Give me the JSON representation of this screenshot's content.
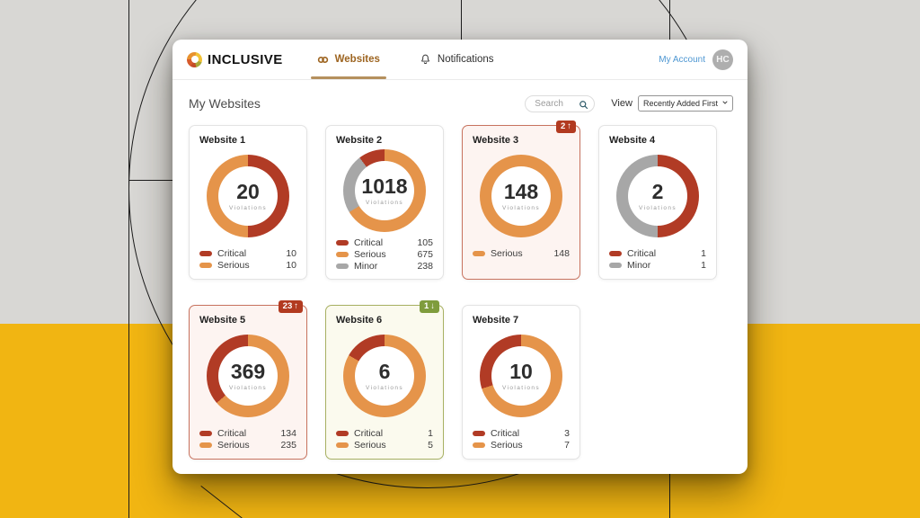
{
  "canvas": {
    "gray": "#d8d7d4",
    "yellow": "#f1b512",
    "line_color": "#1c1c1c"
  },
  "header": {
    "logo_text": "INCLUSIVE",
    "tabs": [
      {
        "label": "Websites",
        "icon": "link-icon",
        "active": true
      },
      {
        "label": "Notifications",
        "icon": "bell-icon",
        "active": false
      }
    ],
    "account_label": "My Account",
    "avatar_initials": "HC"
  },
  "toolbar": {
    "page_title": "My Websites",
    "search_placeholder": "Search",
    "view_label": "View",
    "view_selected": "Recently Added First"
  },
  "labels": {
    "violations": "Violations"
  },
  "colors": {
    "severity": {
      "critical": "#b13b25",
      "serious": "#e5944a",
      "minor": "#a7a7a7"
    },
    "badge_up": "#b23a20",
    "badge_down": "#7f9c3d",
    "active_tab": "#9d6420",
    "account_link": "#4e97d2"
  },
  "websites": [
    {
      "name": "Website 1",
      "total": "20",
      "highlight": "none",
      "badge": null,
      "segments": [
        {
          "severity": "critical",
          "value": 10
        },
        {
          "severity": "serious",
          "value": 10
        }
      ],
      "legend": [
        {
          "severity": "critical",
          "label": "Critical",
          "value": "10"
        },
        {
          "severity": "serious",
          "label": "Serious",
          "value": "10"
        }
      ]
    },
    {
      "name": "Website 2",
      "total": "1018",
      "highlight": "none",
      "badge": null,
      "segments": [
        {
          "severity": "serious",
          "value": 675
        },
        {
          "severity": "minor",
          "value": 238
        },
        {
          "severity": "critical",
          "value": 105
        }
      ],
      "legend": [
        {
          "severity": "critical",
          "label": "Critical",
          "value": "105"
        },
        {
          "severity": "serious",
          "label": "Serious",
          "value": "675"
        },
        {
          "severity": "minor",
          "label": "Minor",
          "value": "238"
        }
      ]
    },
    {
      "name": "Website 3",
      "total": "148",
      "highlight": "red",
      "badge": {
        "label": "2",
        "arrow": "↑",
        "direction": "up"
      },
      "segments": [
        {
          "severity": "serious",
          "value": 148
        }
      ],
      "legend": [
        {
          "severity": "serious",
          "label": "Serious",
          "value": "148"
        }
      ]
    },
    {
      "name": "Website 4",
      "total": "2",
      "highlight": "none",
      "badge": null,
      "segments": [
        {
          "severity": "critical",
          "value": 1
        },
        {
          "severity": "minor",
          "value": 1
        }
      ],
      "legend": [
        {
          "severity": "critical",
          "label": "Critical",
          "value": "1"
        },
        {
          "severity": "minor",
          "label": "Minor",
          "value": "1"
        }
      ]
    },
    {
      "name": "Website 5",
      "total": "369",
      "highlight": "red",
      "badge": {
        "label": "23",
        "arrow": "↑",
        "direction": "up"
      },
      "segments": [
        {
          "severity": "serious",
          "value": 235
        },
        {
          "severity": "critical",
          "value": 134
        }
      ],
      "legend": [
        {
          "severity": "critical",
          "label": "Critical",
          "value": "134"
        },
        {
          "severity": "serious",
          "label": "Serious",
          "value": "235"
        }
      ]
    },
    {
      "name": "Website 6",
      "total": "6",
      "highlight": "green",
      "badge": {
        "label": "1",
        "arrow": "↓",
        "direction": "down"
      },
      "segments": [
        {
          "severity": "serious",
          "value": 5
        },
        {
          "severity": "critical",
          "value": 1
        }
      ],
      "legend": [
        {
          "severity": "critical",
          "label": "Critical",
          "value": "1"
        },
        {
          "severity": "serious",
          "label": "Serious",
          "value": "5"
        }
      ]
    },
    {
      "name": "Website 7",
      "total": "10",
      "highlight": "none",
      "badge": null,
      "segments": [
        {
          "severity": "serious",
          "value": 7
        },
        {
          "severity": "critical",
          "value": 3
        }
      ],
      "legend": [
        {
          "severity": "critical",
          "label": "Critical",
          "value": "3"
        },
        {
          "severity": "serious",
          "label": "Serious",
          "value": "7"
        }
      ]
    }
  ]
}
